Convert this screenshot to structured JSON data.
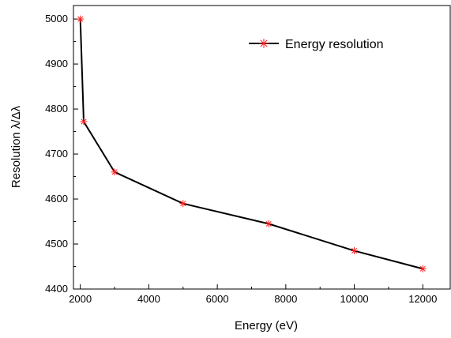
{
  "chart_data": {
    "type": "line",
    "title": "",
    "xlabel": "Energy (eV)",
    "ylabel": "Resolution λ/Δλ",
    "xlim": [
      1800,
      12800
    ],
    "ylim": [
      4400,
      5030
    ],
    "x_ticks": [
      2000,
      4000,
      6000,
      8000,
      10000,
      12000
    ],
    "y_ticks": [
      4400,
      4500,
      4600,
      4700,
      4800,
      4900,
      5000
    ],
    "legend_position": "top-right",
    "grid": false,
    "series": [
      {
        "name": "Energy resolution",
        "color": "#000000",
        "marker_color": "#ff2020",
        "marker": "asterisk",
        "x": [
          2000,
          2100,
          3000,
          5000,
          7500,
          10000,
          12000
        ],
        "y": [
          5000,
          4772,
          4660,
          4590,
          4545,
          4485,
          4445
        ]
      }
    ]
  }
}
